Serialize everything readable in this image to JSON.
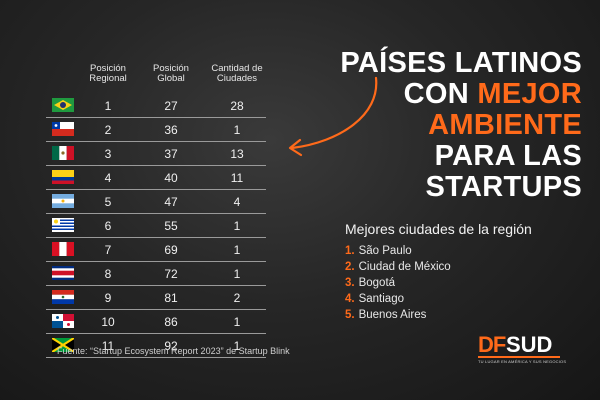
{
  "table": {
    "headers": {
      "regional": [
        "Posición",
        "Regional"
      ],
      "global": [
        "Posición",
        "Global"
      ],
      "ciudades": [
        "Cantidad de",
        "Ciudades"
      ]
    },
    "rows": [
      {
        "flag": "brazil-flag",
        "regional": "1",
        "global": "27",
        "ciudades": "28"
      },
      {
        "flag": "chile-flag",
        "regional": "2",
        "global": "36",
        "ciudades": "1"
      },
      {
        "flag": "mexico-flag",
        "regional": "3",
        "global": "37",
        "ciudades": "13"
      },
      {
        "flag": "colombia-flag",
        "regional": "4",
        "global": "40",
        "ciudades": "11"
      },
      {
        "flag": "argentina-flag",
        "regional": "5",
        "global": "47",
        "ciudades": "4"
      },
      {
        "flag": "uruguay-flag",
        "regional": "6",
        "global": "55",
        "ciudades": "1"
      },
      {
        "flag": "peru-flag",
        "regional": "7",
        "global": "69",
        "ciudades": "1"
      },
      {
        "flag": "costa-rica-flag",
        "regional": "8",
        "global": "72",
        "ciudades": "1"
      },
      {
        "flag": "paraguay-flag",
        "regional": "9",
        "global": "81",
        "ciudades": "2"
      },
      {
        "flag": "panama-flag",
        "regional": "10",
        "global": "86",
        "ciudades": "1"
      },
      {
        "flag": "jamaica-flag",
        "regional": "11",
        "global": "92",
        "ciudades": "1"
      }
    ]
  },
  "headline": {
    "line1": "PAÍSES LATINOS",
    "line2_a": "CON ",
    "line2_b": "MEJOR",
    "line3": "AMBIENTE",
    "line4": "PARA LAS",
    "line5": "STARTUPS",
    "accent_color": "#ff6a1a"
  },
  "cities": {
    "title": "Mejores ciudades de la región",
    "items": [
      {
        "num": "1.",
        "name": "São Paulo"
      },
      {
        "num": "2.",
        "name": "Ciudad de México"
      },
      {
        "num": "3.",
        "name": "Bogotá"
      },
      {
        "num": "4.",
        "name": "Santiago"
      },
      {
        "num": "5.",
        "name": "Buenos Aires"
      }
    ]
  },
  "source": "Fuente: “Startup Ecosystem Report 2023” de Startup Blink",
  "logo": {
    "df": "DF",
    "sud": "SUD",
    "tagline": "TU LUGAR EN AMÉRICA Y SUS NEGOCIOS"
  }
}
